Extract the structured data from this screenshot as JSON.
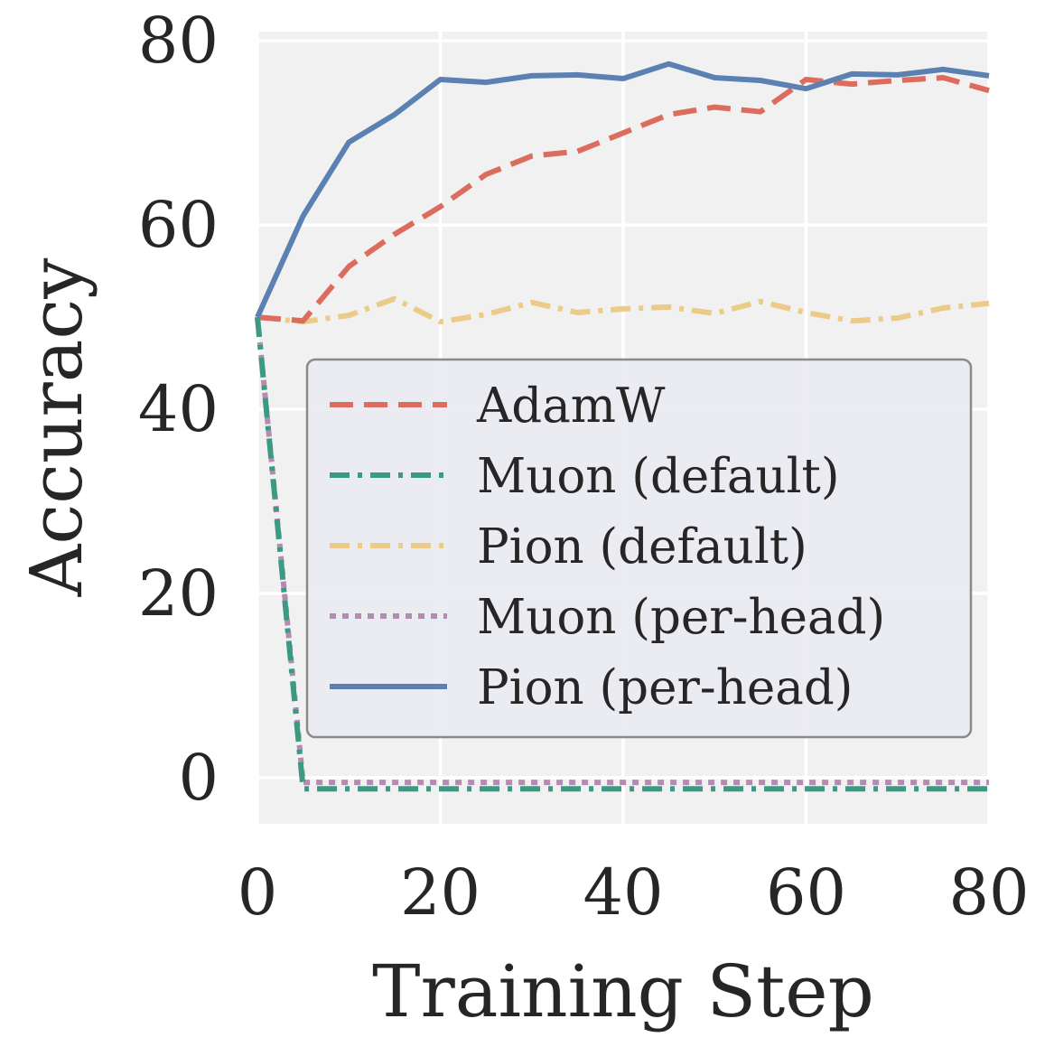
{
  "chart_data": {
    "type": "line",
    "xlabel": "Training Step",
    "ylabel": "Accuracy",
    "xlim": [
      0,
      80
    ],
    "ylim": [
      -5,
      81
    ],
    "xticks": [
      0,
      20,
      40,
      60,
      80
    ],
    "yticks": [
      0,
      20,
      40,
      60,
      80
    ],
    "grid": true,
    "legend_position": "center-right",
    "x": [
      0,
      5,
      10,
      15,
      20,
      25,
      30,
      35,
      40,
      45,
      50,
      55,
      60,
      65,
      70,
      75,
      80
    ],
    "series": [
      {
        "name": "AdamW",
        "color": "#dc6d5e",
        "dash": "dashed",
        "values": [
          50,
          49.6,
          55.5,
          59,
          62,
          65.5,
          67.5,
          68,
          70,
          72,
          72.8,
          72.3,
          75.8,
          75.3,
          75.7,
          76,
          74.6
        ]
      },
      {
        "name": "Muon (default)",
        "color": "#3c9a82",
        "dash": "dashdot",
        "values": [
          50,
          -1.2,
          -1.2,
          -1.2,
          -1.2,
          -1.2,
          -1.2,
          -1.2,
          -1.2,
          -1.2,
          -1.2,
          -1.2,
          -1.2,
          -1.2,
          -1.2,
          -1.2,
          -1.2
        ]
      },
      {
        "name": "Pion (default)",
        "color": "#ebcb87",
        "dash": "dashdot",
        "values": [
          50,
          49.5,
          50.2,
          52,
          49.5,
          50.3,
          51.6,
          50.5,
          50.9,
          51.1,
          50.4,
          51.7,
          50.5,
          49.6,
          49.9,
          51,
          51.5
        ]
      },
      {
        "name": "Muon (per-head)",
        "color": "#b58bb2",
        "dash": "dotted",
        "values": [
          50,
          -0.5,
          -0.5,
          -0.5,
          -0.5,
          -0.5,
          -0.5,
          -0.5,
          -0.5,
          -0.5,
          -0.5,
          -0.5,
          -0.5,
          -0.5,
          -0.5,
          -0.5,
          -0.5
        ]
      },
      {
        "name": "Pion (per-head)",
        "color": "#5b81b2",
        "dash": "solid",
        "values": [
          50,
          61,
          69,
          72,
          75.8,
          75.5,
          76.2,
          76.3,
          75.9,
          77.5,
          76,
          75.7,
          74.8,
          76.4,
          76.3,
          76.9,
          76.2
        ]
      }
    ]
  }
}
